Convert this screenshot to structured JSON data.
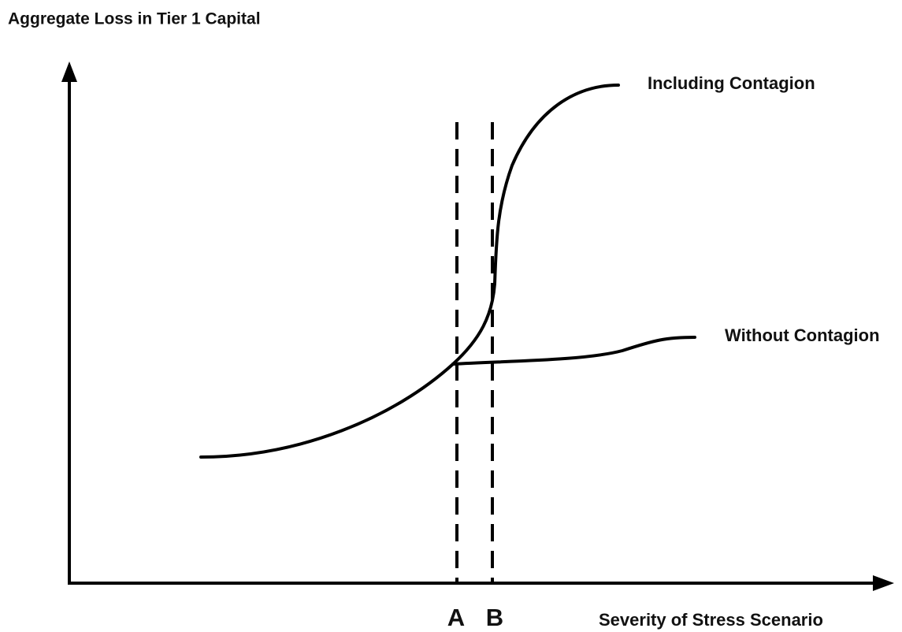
{
  "title": "Aggregate Loss in Tier 1 Capital",
  "curves": [
    {
      "label": "Including Contagion"
    },
    {
      "label": "Without Contagion"
    }
  ],
  "markers": [
    "A",
    "B"
  ],
  "x_axis_label": "Severity of Stress Scenario"
}
